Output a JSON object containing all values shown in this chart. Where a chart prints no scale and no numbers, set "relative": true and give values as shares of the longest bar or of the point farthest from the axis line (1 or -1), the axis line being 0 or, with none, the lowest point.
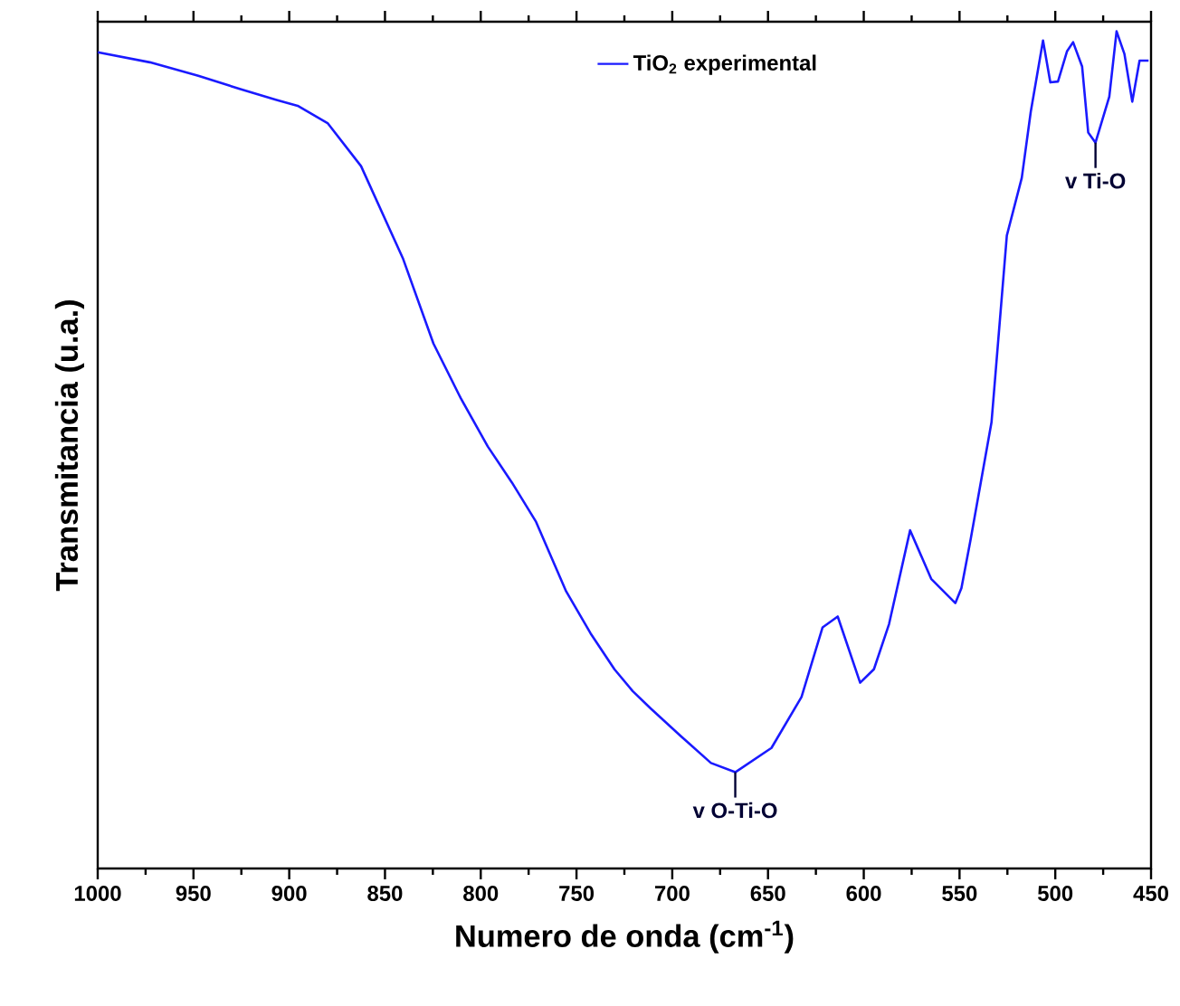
{
  "chart_data": {
    "type": "line",
    "relative": true,
    "xlabel": "Numero de onda (cm$^{-1}$)",
    "ylabel": "Transmitancia (u.a.)",
    "xlim": [
      1000,
      450
    ],
    "xticks": [
      1000,
      950,
      900,
      850,
      800,
      750,
      700,
      650,
      600,
      550,
      500,
      450
    ],
    "legend": "top",
    "marker": "none",
    "line_style": "solid",
    "series": [
      {
        "name": "TiO$_{2}$ experimental",
        "color": "#1a1aff",
        "x": [
          1000,
          972.8,
          947.5,
          925.5,
          906.6,
          895.6,
          879.8,
          862.5,
          840.5,
          824.7,
          810.5,
          796.3,
          783.7,
          771.1,
          755.4,
          742.7,
          730.2,
          720.7,
          711.2,
          695.5,
          679.8,
          667.1,
          648.2,
          632.5,
          621.5,
          613.6,
          601.9,
          594.7,
          586.8,
          575.8,
          564.8,
          552.2,
          549.0,
          544.2,
          533.3,
          525.3,
          517.5,
          512.8,
          506.4,
          502.6,
          498.6,
          493.9,
          490.7,
          486.0,
          482.8,
          479.0,
          471.8,
          468,
          463.9,
          459.8,
          456.0,
          451.3
        ],
        "values": [
          0.975,
          0.963,
          0.947,
          0.931,
          0.918,
          0.911,
          0.89,
          0.839,
          0.728,
          0.627,
          0.562,
          0.504,
          0.461,
          0.414,
          0.331,
          0.281,
          0.238,
          0.212,
          0.191,
          0.158,
          0.126,
          0.115,
          0.144,
          0.205,
          0.288,
          0.301,
          0.222,
          0.238,
          0.292,
          0.404,
          0.346,
          0.317,
          0.335,
          0.393,
          0.533,
          0.756,
          0.825,
          0.904,
          0.989,
          0.939,
          0.94,
          0.976,
          0.987,
          0.958,
          0.879,
          0.867,
          0.922,
          1.0,
          0.973,
          0.916,
          0.965,
          0.965
        ]
      }
    ],
    "annotations": [
      {
        "text": "v O-Ti-O",
        "x": 667.1,
        "y": 0.115
      },
      {
        "text": "v Ti-O",
        "x": 479.0,
        "y": 0.867
      }
    ]
  }
}
